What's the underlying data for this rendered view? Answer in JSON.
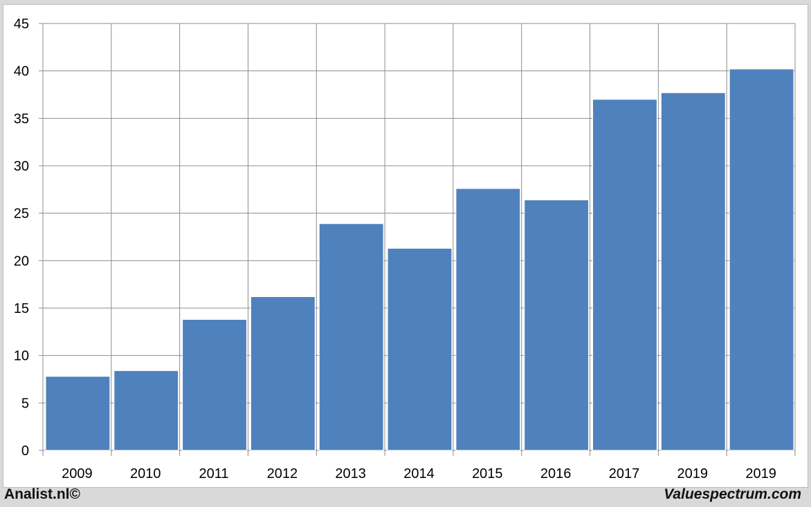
{
  "chart_data": {
    "type": "bar",
    "categories": [
      "2009",
      "2010",
      "2011",
      "2012",
      "2013",
      "2014",
      "2015",
      "2016",
      "2017",
      "2019",
      "2019"
    ],
    "values": [
      7.8,
      8.4,
      13.8,
      16.2,
      23.9,
      21.3,
      27.6,
      26.4,
      37.0,
      37.7,
      40.2
    ],
    "title": "",
    "xlabel": "",
    "ylabel": "",
    "ylim": [
      0,
      45
    ],
    "yticks": [
      "0",
      "5",
      "10",
      "15",
      "20",
      "25",
      "30",
      "35",
      "40",
      "45"
    ],
    "grid": true,
    "bar_color": "#4f81bd"
  },
  "footer": {
    "left": "Analist.nl©",
    "right": "Valuespectrum.com"
  }
}
